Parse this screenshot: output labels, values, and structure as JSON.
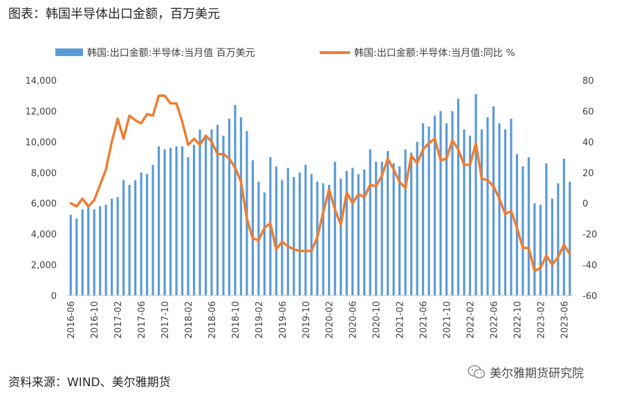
{
  "header": {
    "title": "图表：韩国半导体出口金额，百万美元"
  },
  "footer": {
    "source": "资料来源：WIND、美尔雅期货",
    "watermark": "美尔雅期货研究院",
    "watermark_icon": "wechat-icon"
  },
  "colors": {
    "bar": "#5B9BD5",
    "line": "#ED7D31",
    "axis": "#BFBFBF",
    "text": "#404040"
  },
  "chart_data": {
    "type": "bar+line",
    "x": [
      "2016-06",
      "2016-07",
      "2016-08",
      "2016-09",
      "2016-10",
      "2016-11",
      "2016-12",
      "2017-01",
      "2017-02",
      "2017-03",
      "2017-04",
      "2017-05",
      "2017-06",
      "2017-07",
      "2017-08",
      "2017-09",
      "2017-10",
      "2017-11",
      "2017-12",
      "2018-01",
      "2018-02",
      "2018-03",
      "2018-04",
      "2018-05",
      "2018-06",
      "2018-07",
      "2018-08",
      "2018-09",
      "2018-10",
      "2018-11",
      "2018-12",
      "2019-01",
      "2019-02",
      "2019-03",
      "2019-04",
      "2019-05",
      "2019-06",
      "2019-07",
      "2019-08",
      "2019-09",
      "2019-10",
      "2019-11",
      "2019-12",
      "2020-01",
      "2020-02",
      "2020-03",
      "2020-04",
      "2020-05",
      "2020-06",
      "2020-07",
      "2020-08",
      "2020-09",
      "2020-10",
      "2020-11",
      "2020-12",
      "2021-01",
      "2021-02",
      "2021-03",
      "2021-04",
      "2021-05",
      "2021-06",
      "2021-07",
      "2021-08",
      "2021-09",
      "2021-10",
      "2021-11",
      "2021-12",
      "2022-01",
      "2022-02",
      "2022-03",
      "2022-04",
      "2022-05",
      "2022-06",
      "2022-07",
      "2022-08",
      "2022-09",
      "2022-10",
      "2022-11",
      "2022-12",
      "2023-01",
      "2023-02",
      "2023-03",
      "2023-04",
      "2023-05",
      "2023-06",
      "2023-07"
    ],
    "x_tick_labels": [
      "2016-06",
      "2016-10",
      "2017-02",
      "2017-06",
      "2017-10",
      "2018-02",
      "2018-06",
      "2018-10",
      "2019-02",
      "2019-06",
      "2019-10",
      "2020-02",
      "2020-06",
      "2020-10",
      "2021-02",
      "2021-06",
      "2021-10",
      "2022-02",
      "2022-06",
      "2022-10",
      "2023-02",
      "2023-06"
    ],
    "series": [
      {
        "name": "韩国:出口金额:半导体:当月值 百万美元",
        "type": "bar",
        "axis": "left",
        "values": [
          5250,
          5000,
          5600,
          5800,
          5600,
          5800,
          5900,
          6300,
          6400,
          7500,
          7200,
          7500,
          8000,
          7900,
          8500,
          9700,
          9500,
          9600,
          9700,
          9700,
          9000,
          9800,
          10800,
          10300,
          10800,
          11100,
          10400,
          11500,
          12400,
          11600,
          10700,
          8800,
          7400,
          6700,
          9000,
          8400,
          7500,
          8300,
          7700,
          8000,
          8500,
          7900,
          7400,
          7300,
          7200,
          8700,
          7600,
          8100,
          8300,
          7900,
          8200,
          9500,
          8700,
          8700,
          9400,
          8600,
          8400,
          9500,
          9300,
          10000,
          11200,
          11000,
          11700,
          12000,
          11200,
          12000,
          12800,
          10800,
          10400,
          13100,
          10800,
          11600,
          12300,
          11200,
          10800,
          11500,
          9200,
          8400,
          9000,
          6000,
          5900,
          8600,
          6300,
          7300,
          8900,
          7400
        ]
      },
      {
        "name": "韩国:出口金额:半导体:当月值:同比 %",
        "type": "line",
        "axis": "right",
        "values": [
          0,
          -2,
          3,
          -2,
          2,
          12,
          22,
          40,
          55,
          42,
          57,
          54,
          52,
          58,
          57,
          70,
          70,
          65,
          65,
          53,
          38,
          42,
          38,
          44,
          40,
          32,
          32,
          29,
          23,
          14,
          -10,
          -23,
          -24,
          -16,
          -13,
          -30,
          -25,
          -28,
          -30,
          -31,
          -31,
          -31,
          -22,
          -6,
          9,
          -4,
          -14,
          7,
          0,
          6,
          4,
          12,
          11,
          18,
          29,
          22,
          14,
          10,
          31,
          26,
          35,
          39,
          42,
          28,
          29,
          41,
          35,
          25,
          25,
          39,
          16,
          15,
          11,
          3,
          -7,
          -5,
          -16,
          -29,
          -29,
          -44,
          -42,
          -34,
          -40,
          -35,
          -27,
          -33
        ]
      }
    ],
    "left_axis": {
      "min": 0,
      "max": 14000,
      "step": 2000,
      "tick_labels": [
        "0",
        "2,000",
        "4,000",
        "6,000",
        "8,000",
        "10,000",
        "12,000",
        "14,000"
      ]
    },
    "right_axis": {
      "min": -60,
      "max": 80,
      "step": 20,
      "tick_labels": [
        "-60",
        "-40",
        "-20",
        "0",
        "20",
        "40",
        "60",
        "80"
      ]
    },
    "grid": false,
    "legend_position": "top"
  }
}
